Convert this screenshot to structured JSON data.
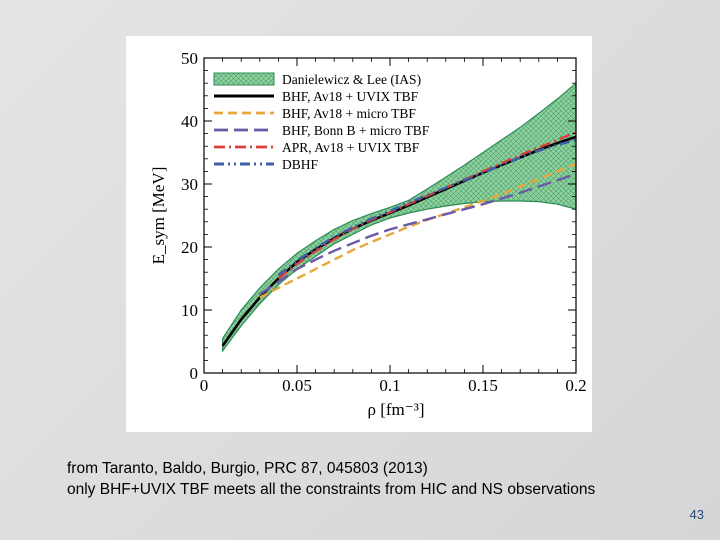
{
  "caption": {
    "line1": "from Taranto, Baldo, Burgio, PRC 87, 045803 (2013)",
    "line2": "only BHF+UVIX TBF meets all the constraints from HIC and NS observations"
  },
  "slide_number": "43",
  "chart_data": {
    "type": "line",
    "title": "",
    "xlabel": "ρ [fm⁻³]",
    "ylabel": "E_sym [MeV]",
    "xlim": [
      0,
      0.2
    ],
    "ylim": [
      0,
      50
    ],
    "xticks": [
      "0",
      "0.05",
      "0.1",
      "0.15",
      "0.2"
    ],
    "yticks": [
      "0",
      "10",
      "20",
      "30",
      "40",
      "50"
    ],
    "legend_position": "top-left",
    "band": {
      "name": "Danielewicz & Lee (IAS)",
      "color": "#2e8b57",
      "x": [
        0.01,
        0.02,
        0.03,
        0.04,
        0.05,
        0.06,
        0.07,
        0.08,
        0.09,
        0.1,
        0.11,
        0.12,
        0.13,
        0.14,
        0.15,
        0.16,
        0.17,
        0.18,
        0.19,
        0.2
      ],
      "lower": [
        3.5,
        7.5,
        11,
        14,
        16.5,
        18.5,
        20.5,
        22,
        23.5,
        24.6,
        25.4,
        26,
        26.5,
        26.9,
        27.2,
        27.3,
        27.3,
        27.2,
        26.8,
        26
      ],
      "upper": [
        5.5,
        10,
        13.5,
        16.5,
        19,
        21,
        22.8,
        24.2,
        25.3,
        26.3,
        27.4,
        29.2,
        31.1,
        33,
        35,
        37,
        39,
        41.2,
        43.5,
        46
      ]
    },
    "series": [
      {
        "name": "BHF, Av18 + UVIX TBF",
        "color": "#000000",
        "dash": "",
        "width": 2.6,
        "x": [
          0.01,
          0.02,
          0.03,
          0.04,
          0.05,
          0.06,
          0.07,
          0.08,
          0.09,
          0.1,
          0.11,
          0.12,
          0.13,
          0.14,
          0.15,
          0.16,
          0.17,
          0.18,
          0.19,
          0.2
        ],
        "y": [
          4.3,
          8.5,
          12,
          15,
          17.6,
          19.6,
          21.4,
          22.9,
          24.2,
          25.4,
          26.6,
          27.9,
          29.2,
          30.5,
          31.8,
          33,
          34.2,
          35.4,
          36.5,
          37.5
        ]
      },
      {
        "name": "BHF, Av18 + micro TBF",
        "color": "#e8a73a",
        "dash": "9,5",
        "width": 2.4,
        "x": [
          0.03,
          0.04,
          0.05,
          0.06,
          0.07,
          0.08,
          0.09,
          0.1,
          0.11,
          0.12,
          0.13,
          0.14,
          0.15,
          0.16,
          0.17,
          0.18,
          0.19,
          0.2
        ],
        "y": [
          12,
          13.5,
          15,
          16.5,
          18,
          19.5,
          20.8,
          22,
          23.2,
          24.3,
          25.3,
          26.3,
          27.3,
          28.4,
          29.6,
          30.8,
          32,
          33.2
        ]
      },
      {
        "name": "BHF, Bonn B + micro TBF",
        "color": "#6a5aa8",
        "dash": "14,6",
        "width": 2.4,
        "x": [
          0.03,
          0.04,
          0.05,
          0.06,
          0.07,
          0.08,
          0.09,
          0.1,
          0.11,
          0.12,
          0.13,
          0.14,
          0.15,
          0.16,
          0.17,
          0.18,
          0.19,
          0.2
        ],
        "y": [
          12.5,
          14.5,
          16.5,
          18,
          19.4,
          20.6,
          21.8,
          22.8,
          23.6,
          24.4,
          25.2,
          26,
          26.8,
          27.7,
          28.6,
          29.6,
          30.6,
          31.6
        ]
      },
      {
        "name": "APR, Av18 + UVIX TBF",
        "color": "#d8403a",
        "dash": "11,4,2,4",
        "width": 2.4,
        "x": [
          0.04,
          0.05,
          0.06,
          0.07,
          0.08,
          0.09,
          0.1,
          0.11,
          0.12,
          0.13,
          0.14,
          0.15,
          0.16,
          0.17,
          0.18,
          0.19,
          0.2
        ],
        "y": [
          15,
          17.3,
          19.3,
          21.2,
          22.9,
          24.3,
          25.5,
          26.8,
          28.1,
          29.4,
          30.7,
          32,
          33.3,
          34.6,
          35.8,
          37,
          38.2
        ]
      },
      {
        "name": "DBHF",
        "color": "#3f5fa8",
        "dash": "10,4,2,4,2,4",
        "width": 2.6,
        "x": [
          0.04,
          0.05,
          0.06,
          0.07,
          0.08,
          0.09,
          0.1,
          0.11,
          0.12,
          0.13,
          0.14,
          0.15,
          0.16,
          0.17,
          0.18,
          0.19,
          0.2
        ],
        "y": [
          15.5,
          17.8,
          19.8,
          21.6,
          23.1,
          24.5,
          25.7,
          27,
          28.2,
          29.4,
          30.6,
          31.8,
          33,
          34.2,
          35.3,
          36.2,
          37
        ]
      }
    ]
  }
}
